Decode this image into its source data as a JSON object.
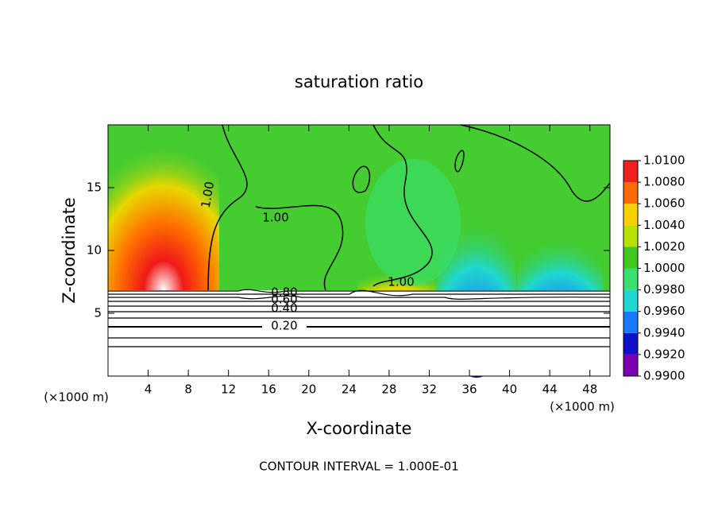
{
  "chart_data": {
    "type": "contour",
    "title": "saturation ratio",
    "x_label": "X-coordinate",
    "y_label": "Z-coordinate",
    "x_unit": "(×1000 m)",
    "y_unit": "(×1000 m)",
    "footer": "CONTOUR INTERVAL = 1.000E-01",
    "xlim": [
      0,
      50
    ],
    "ylim": [
      0,
      20
    ],
    "xticks": [
      4,
      8,
      12,
      16,
      20,
      24,
      28,
      32,
      36,
      40,
      44,
      48
    ],
    "yticks": [
      5,
      10,
      15
    ],
    "contour_labels": [
      "1.00",
      "1.00",
      "1.00",
      "0.80",
      "0.60",
      "0.40",
      "0.20"
    ],
    "colorbar": {
      "ticks": [
        {
          "value": 0.99,
          "label": "0.9900"
        },
        {
          "value": 0.992,
          "label": "0.9920"
        },
        {
          "value": 0.994,
          "label": "0.9940"
        },
        {
          "value": 0.996,
          "label": "0.9960"
        },
        {
          "value": 0.998,
          "label": "0.9980"
        },
        {
          "value": 1.0,
          "label": "1.0000"
        },
        {
          "value": 1.002,
          "label": "1.0020"
        },
        {
          "value": 1.004,
          "label": "1.0040"
        },
        {
          "value": 1.006,
          "label": "1.0060"
        },
        {
          "value": 1.008,
          "label": "1.0080"
        },
        {
          "value": 1.01,
          "label": "1.0100"
        }
      ],
      "colors": [
        "#7a00b0",
        "#1010c8",
        "#1a78ff",
        "#20d8d0",
        "#38e070",
        "#40c820",
        "#b8e000",
        "#f8d000",
        "#ff6a00",
        "#f02020"
      ]
    }
  }
}
